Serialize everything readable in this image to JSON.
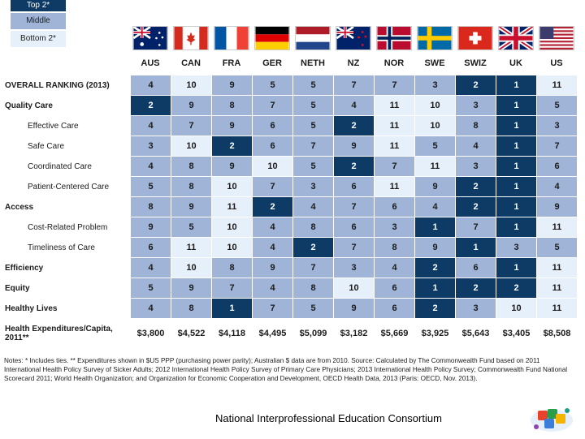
{
  "legend": [
    "Top 2*",
    "Middle",
    "Bottom 2*"
  ],
  "countries": [
    "AUS",
    "CAN",
    "FRA",
    "GER",
    "NETH",
    "NZ",
    "NOR",
    "SWE",
    "SWIZ",
    "UK",
    "US"
  ],
  "rows": [
    {
      "label": "OVERALL RANKING (2013)",
      "type": "main",
      "values": [
        "4",
        "10",
        "9",
        "5",
        "5",
        "7",
        "7",
        "3",
        "2",
        "1",
        "11"
      ],
      "tiers": [
        "m",
        "b",
        "m",
        "m",
        "m",
        "m",
        "m",
        "m",
        "t",
        "t",
        "b"
      ]
    },
    {
      "label": "Quality Care",
      "type": "main",
      "values": [
        "2",
        "9",
        "8",
        "7",
        "5",
        "4",
        "11",
        "10",
        "3",
        "1",
        "5"
      ],
      "tiers": [
        "t",
        "m",
        "m",
        "m",
        "m",
        "m",
        "b",
        "b",
        "m",
        "t",
        "m"
      ]
    },
    {
      "label": "Effective Care",
      "type": "sub",
      "values": [
        "4",
        "7",
        "9",
        "6",
        "5",
        "2",
        "11",
        "10",
        "8",
        "1",
        "3"
      ],
      "tiers": [
        "m",
        "m",
        "m",
        "m",
        "m",
        "t",
        "b",
        "b",
        "m",
        "t",
        "m"
      ]
    },
    {
      "label": "Safe Care",
      "type": "sub",
      "values": [
        "3",
        "10",
        "2",
        "6",
        "7",
        "9",
        "11",
        "5",
        "4",
        "1",
        "7"
      ],
      "tiers": [
        "m",
        "b",
        "t",
        "m",
        "m",
        "m",
        "b",
        "m",
        "m",
        "t",
        "m"
      ]
    },
    {
      "label": "Coordinated Care",
      "type": "sub",
      "values": [
        "4",
        "8",
        "9",
        "10",
        "5",
        "2",
        "7",
        "11",
        "3",
        "1",
        "6"
      ],
      "tiers": [
        "m",
        "m",
        "m",
        "b",
        "m",
        "t",
        "m",
        "b",
        "m",
        "t",
        "m"
      ]
    },
    {
      "label": "Patient-Centered Care",
      "type": "sub",
      "values": [
        "5",
        "8",
        "10",
        "7",
        "3",
        "6",
        "11",
        "9",
        "2",
        "1",
        "4"
      ],
      "tiers": [
        "m",
        "m",
        "b",
        "m",
        "m",
        "m",
        "b",
        "m",
        "t",
        "t",
        "m"
      ]
    },
    {
      "label": "Access",
      "type": "main",
      "values": [
        "8",
        "9",
        "11",
        "2",
        "4",
        "7",
        "6",
        "4",
        "2",
        "1",
        "9"
      ],
      "tiers": [
        "m",
        "m",
        "b",
        "t",
        "m",
        "m",
        "m",
        "m",
        "t",
        "t",
        "m"
      ]
    },
    {
      "label": "Cost-Related Problem",
      "type": "sub",
      "values": [
        "9",
        "5",
        "10",
        "4",
        "8",
        "6",
        "3",
        "1",
        "7",
        "1",
        "11"
      ],
      "tiers": [
        "m",
        "m",
        "b",
        "m",
        "m",
        "m",
        "m",
        "t",
        "m",
        "t",
        "b"
      ]
    },
    {
      "label": "Timeliness of Care",
      "type": "sub",
      "values": [
        "6",
        "11",
        "10",
        "4",
        "2",
        "7",
        "8",
        "9",
        "1",
        "3",
        "5"
      ],
      "tiers": [
        "m",
        "b",
        "b",
        "m",
        "t",
        "m",
        "m",
        "m",
        "t",
        "m",
        "m"
      ]
    },
    {
      "label": "Efficiency",
      "type": "main",
      "values": [
        "4",
        "10",
        "8",
        "9",
        "7",
        "3",
        "4",
        "2",
        "6",
        "1",
        "11"
      ],
      "tiers": [
        "m",
        "b",
        "m",
        "m",
        "m",
        "m",
        "m",
        "t",
        "m",
        "t",
        "b"
      ]
    },
    {
      "label": "Equity",
      "type": "main",
      "values": [
        "5",
        "9",
        "7",
        "4",
        "8",
        "10",
        "6",
        "1",
        "2",
        "2",
        "11"
      ],
      "tiers": [
        "m",
        "m",
        "m",
        "m",
        "m",
        "b",
        "m",
        "t",
        "t",
        "t",
        "b"
      ]
    },
    {
      "label": "Healthy Lives",
      "type": "main",
      "values": [
        "4",
        "8",
        "1",
        "7",
        "5",
        "9",
        "6",
        "2",
        "3",
        "10",
        "11"
      ],
      "tiers": [
        "m",
        "m",
        "t",
        "m",
        "m",
        "m",
        "m",
        "t",
        "m",
        "b",
        "b"
      ]
    }
  ],
  "expenditures": {
    "label": "Health Expenditures/Capita, 2011**",
    "values": [
      "$3,800",
      "$4,522",
      "$4,118",
      "$4,495",
      "$5,099",
      "$3,182",
      "$5,669",
      "$3,925",
      "$5,643",
      "$3,405",
      "$8,508"
    ]
  },
  "notes": "Notes: * Includes ties. ** Expenditures shown in $US PPP (purchasing power parity); Australian $ data are from 2010. Source: Calculated by The Commonwealth Fund based on 2011 International Health Policy Survey of Sicker Adults; 2012 International Health Policy Survey of Primary Care Physicians; 2013 International Health Policy Survey; Commonwealth Fund National Scorecard 2011; World Health Organization; and Organization for Economic Cooperation and Development, OECD Health Data, 2013 (Paris: OECD, Nov. 2013).",
  "footer": "National Interprofessional Education Consortium",
  "colors": {
    "top": "#0d3b66",
    "middle": "#9fb4d6",
    "bottom": "#e6f0fa"
  }
}
